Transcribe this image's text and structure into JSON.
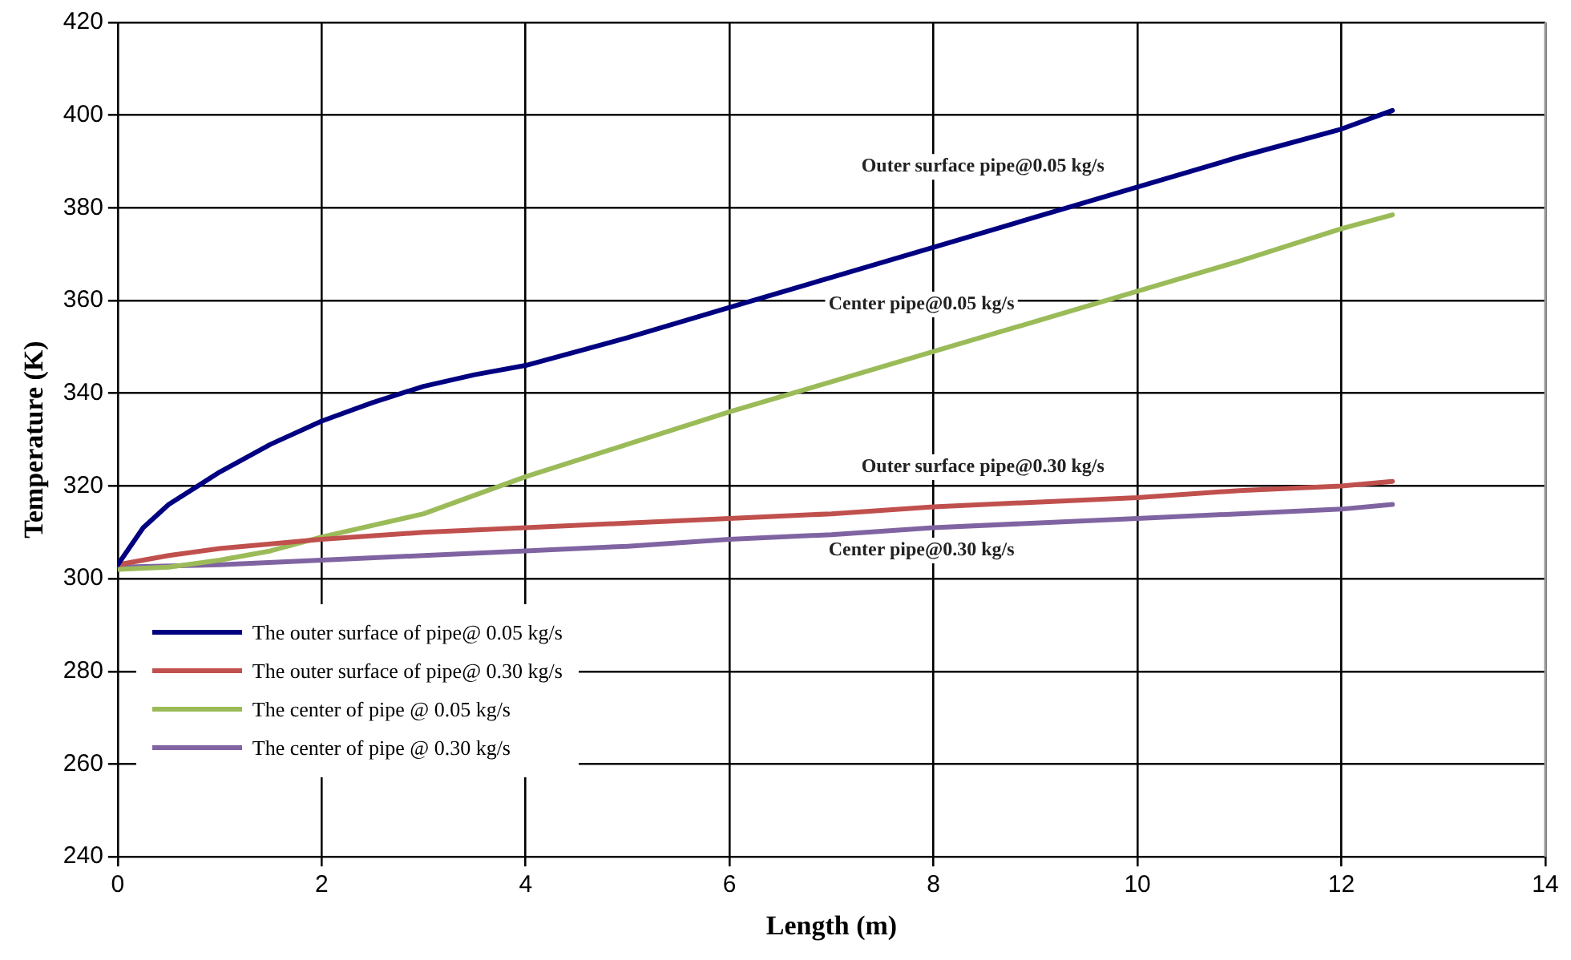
{
  "chart_data": {
    "type": "line",
    "xlabel": "Length (m)",
    "ylabel": "Temperature (K)",
    "xlim": [
      0,
      14
    ],
    "xticks": [
      0,
      2,
      4,
      6,
      8,
      10,
      12,
      14
    ],
    "ylim": [
      240,
      420
    ],
    "yticks": [
      240,
      260,
      280,
      300,
      320,
      340,
      360,
      380,
      400,
      420
    ],
    "grid": true,
    "legend": "bottom left",
    "marker": "none",
    "line_style": "solid",
    "series": [
      {
        "name": "The outer surface of pipe@ 0.05 kg/s",
        "color": "#000080",
        "x": [
          0,
          0.25,
          0.5,
          1,
          1.5,
          2,
          2.5,
          3,
          3.5,
          4,
          5,
          6,
          7,
          8,
          9,
          10,
          11,
          12,
          12.5
        ],
        "values": [
          303,
          311,
          316,
          323,
          329,
          334,
          338,
          341.5,
          344,
          346,
          352,
          358.5,
          365,
          371.5,
          378,
          384.5,
          391,
          397,
          401
        ]
      },
      {
        "name": "The outer surface of pipe@ 0.30 kg/s",
        "color": "#c0504d",
        "x": [
          0,
          0.5,
          1,
          2,
          3,
          4,
          5,
          6,
          7,
          8,
          9,
          10,
          11,
          12,
          12.5
        ],
        "values": [
          303,
          305,
          306.5,
          308.5,
          310,
          311,
          312,
          313,
          314,
          315.5,
          316.5,
          317.5,
          319,
          320,
          321
        ]
      },
      {
        "name": "The center of pipe @ 0.05 kg/s",
        "color": "#9bbb59",
        "x": [
          0,
          0.5,
          1,
          1.5,
          2,
          3,
          4,
          5,
          6,
          7,
          8,
          9,
          10,
          11,
          12,
          12.5
        ],
        "values": [
          302,
          302.5,
          304,
          306,
          309,
          314,
          322,
          329,
          336,
          342.5,
          349,
          355.5,
          362,
          368.5,
          375.5,
          378.5
        ]
      },
      {
        "name": "The center of pipe @ 0.30 kg/s",
        "color": "#8064a2",
        "x": [
          0,
          1,
          2,
          3,
          4,
          5,
          6,
          7,
          8,
          9,
          10,
          11,
          12,
          12.5
        ],
        "values": [
          302.5,
          303,
          304,
          305,
          306,
          307,
          308.5,
          309.5,
          311,
          312,
          313,
          314,
          315,
          316
        ]
      }
    ],
    "annotations": [
      "Outer surface pipe@0.05 kg/s",
      "Center pipe@0.05 kg/s",
      "Outer surface pipe@0.30 kg/s",
      "Center pipe@0.30 kg/s"
    ]
  }
}
